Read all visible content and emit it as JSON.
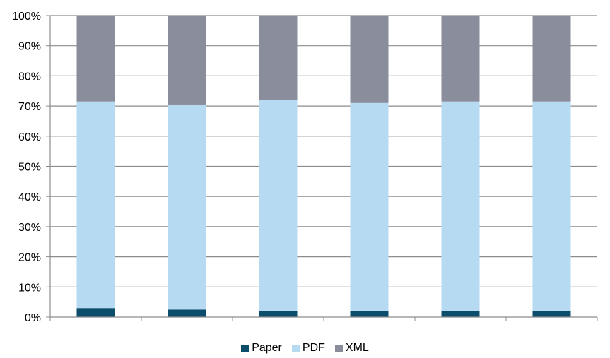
{
  "chart_data": {
    "type": "bar",
    "stacked": true,
    "categories": [
      "",
      "",
      "",
      "",
      "",
      ""
    ],
    "series": [
      {
        "name": "Paper",
        "color": "#0c4d6b",
        "values": [
          3,
          2.5,
          2,
          2,
          2,
          2
        ]
      },
      {
        "name": "PDF",
        "color": "#b7daf3",
        "values": [
          68.5,
          68,
          70,
          69,
          69.5,
          69.5
        ]
      },
      {
        "name": "XML",
        "color": "#8a8d9c",
        "values": [
          28.5,
          29.5,
          28,
          29,
          28.5,
          28.5
        ]
      }
    ],
    "y_ticks": [
      "0%",
      "10%",
      "20%",
      "30%",
      "40%",
      "50%",
      "60%",
      "70%",
      "80%",
      "90%",
      "100%"
    ],
    "ylim": [
      0,
      100
    ],
    "grid": true,
    "legend_position": "bottom"
  }
}
